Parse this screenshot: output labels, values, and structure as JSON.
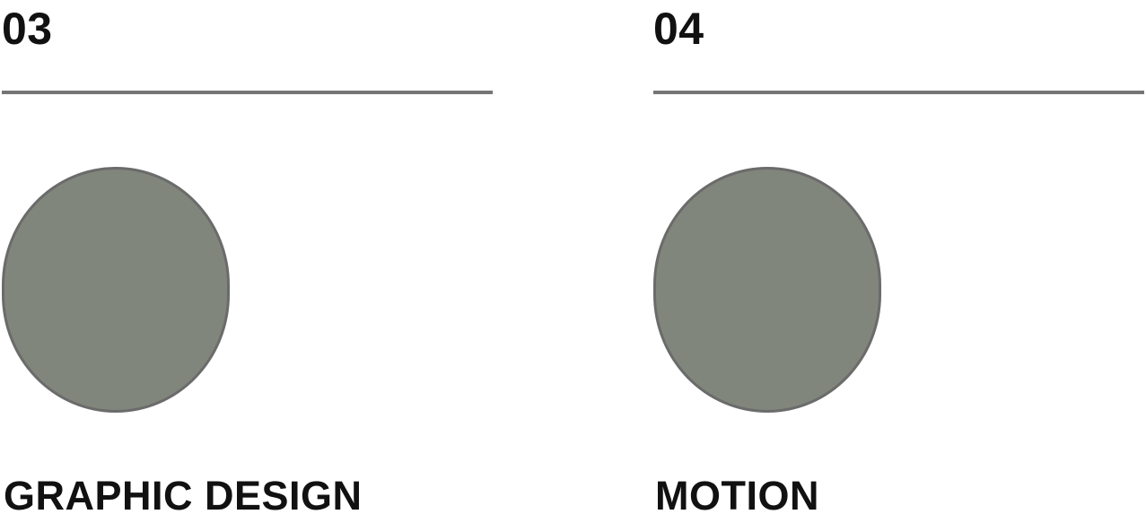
{
  "services": [
    {
      "number": "03",
      "title": "GRAPHIC DESIGN",
      "image_color": "#80867c"
    },
    {
      "number": "04",
      "title": "MOTION",
      "image_color": "#80867c"
    }
  ],
  "colors": {
    "text": "#111111",
    "rule": "#757575",
    "circle_fill": "#80867c",
    "circle_border": "#6b6b6b",
    "background": "#ffffff"
  }
}
